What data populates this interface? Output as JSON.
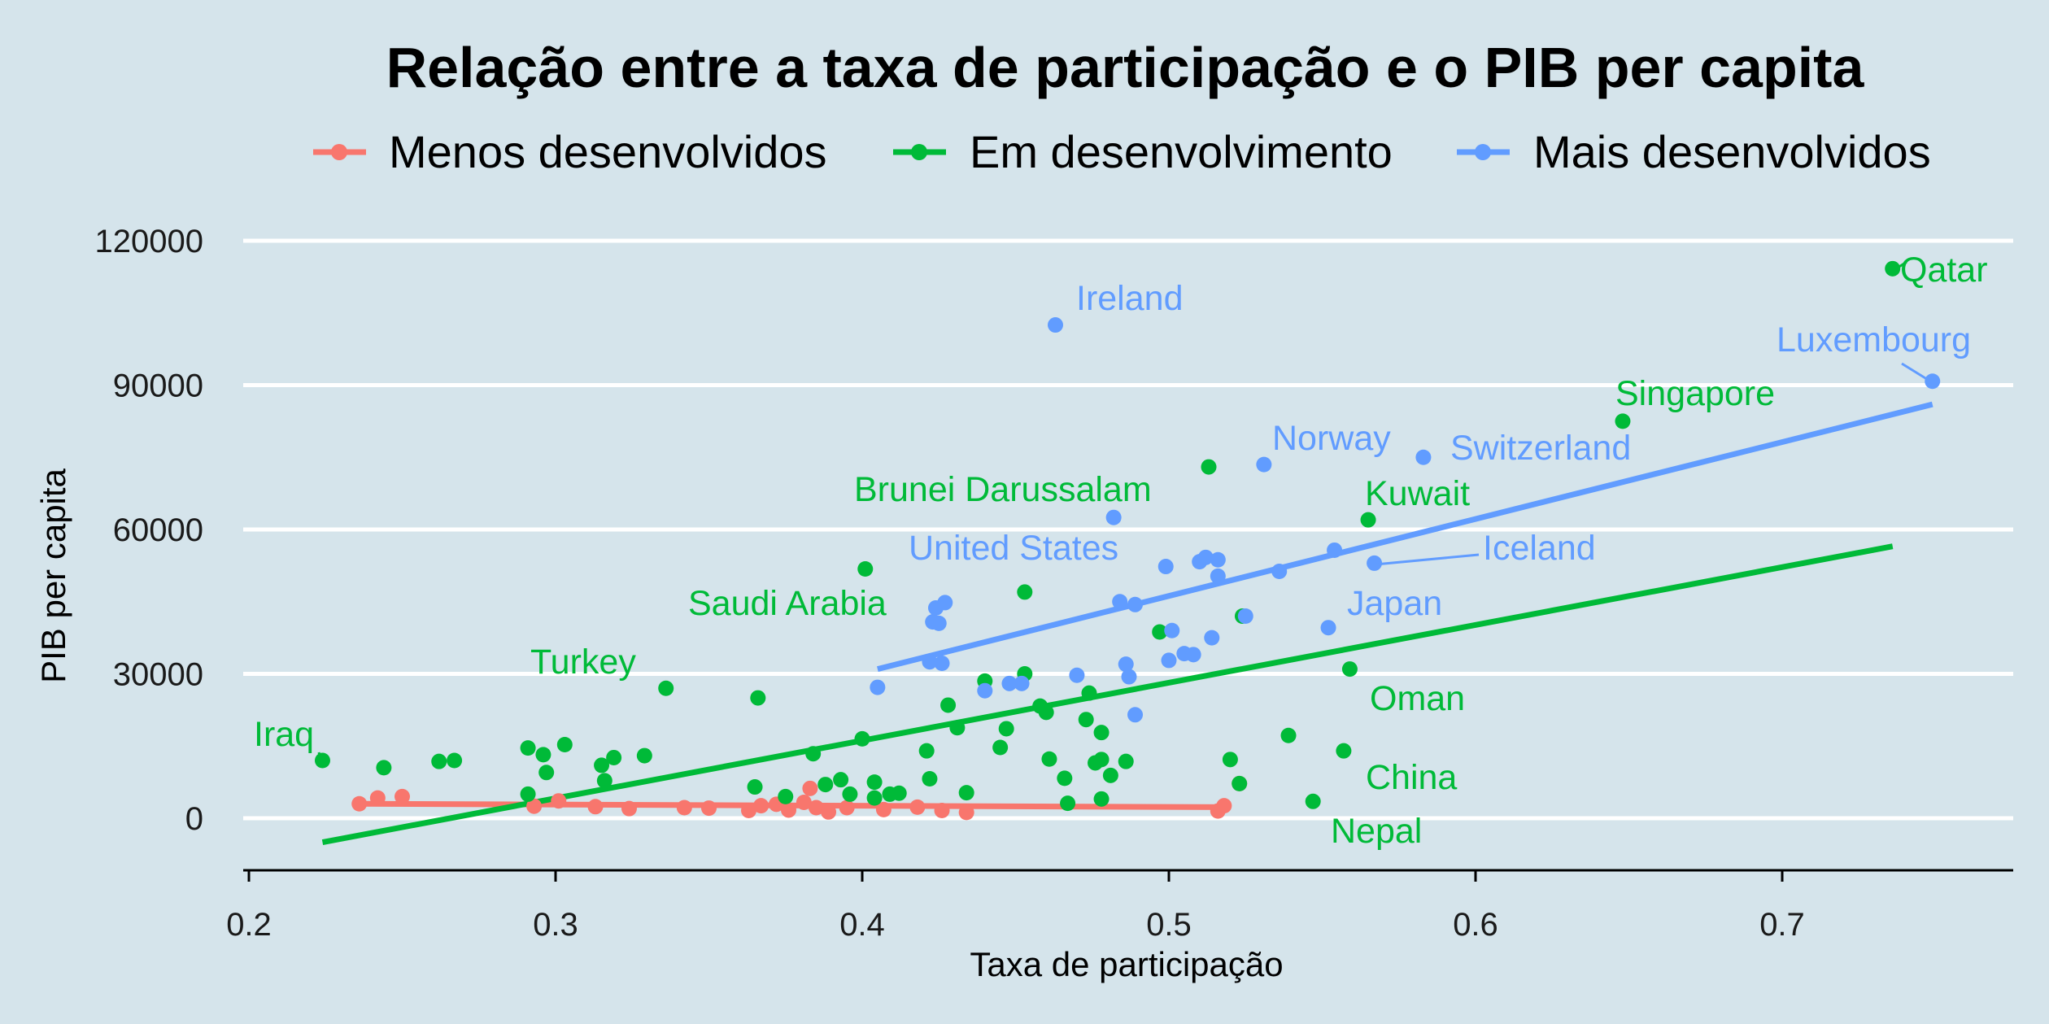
{
  "chart_data": {
    "type": "scatter",
    "title": "Relação entre a taxa de participação e o PIB per capita",
    "xlabel": "Taxa de participação",
    "ylabel": "PIB per capita",
    "xlim": [
      0.195,
      0.775
    ],
    "ylim": [
      -10000,
      125000
    ],
    "x_ticks": [
      0.2,
      0.3,
      0.4,
      0.5,
      0.6,
      0.7
    ],
    "x_tick_labels": [
      "0.2",
      "0.3",
      "0.4",
      "0.5",
      "0.6",
      "0.7"
    ],
    "y_ticks": [
      0,
      30000,
      60000,
      90000,
      120000
    ],
    "y_tick_labels": [
      "0",
      "30000",
      "60000",
      "90000",
      "120000"
    ],
    "grid": "horizontal",
    "legend_position": "top",
    "series": [
      {
        "name": "Menos desenvolvidos",
        "color": "#f8766d",
        "points": [
          [
            0.236,
            3000
          ],
          [
            0.242,
            4200
          ],
          [
            0.25,
            4500
          ],
          [
            0.293,
            2500
          ],
          [
            0.301,
            3600
          ],
          [
            0.313,
            2400
          ],
          [
            0.324,
            2000
          ],
          [
            0.342,
            2200
          ],
          [
            0.35,
            2100
          ],
          [
            0.363,
            1600
          ],
          [
            0.367,
            2600
          ],
          [
            0.372,
            2900
          ],
          [
            0.376,
            1700
          ],
          [
            0.381,
            3300
          ],
          [
            0.385,
            2200
          ],
          [
            0.383,
            6200
          ],
          [
            0.389,
            1300
          ],
          [
            0.395,
            2200
          ],
          [
            0.407,
            1800
          ],
          [
            0.418,
            2300
          ],
          [
            0.426,
            1600
          ],
          [
            0.434,
            1200
          ],
          [
            0.516,
            1500
          ],
          [
            0.518,
            2600
          ],
          [
            0.523,
            7200
          ]
        ],
        "trend": [
          [
            0.236,
            3000
          ],
          [
            0.518,
            2300
          ]
        ]
      },
      {
        "name": "Em desenvolvimento",
        "color": "#00ba38",
        "points": [
          [
            0.224,
            12000
          ],
          [
            0.244,
            10500
          ],
          [
            0.262,
            11800
          ],
          [
            0.267,
            12000
          ],
          [
            0.291,
            14600
          ],
          [
            0.296,
            13200
          ],
          [
            0.303,
            15300
          ],
          [
            0.315,
            11000
          ],
          [
            0.319,
            12600
          ],
          [
            0.329,
            13000
          ],
          [
            0.291,
            5000
          ],
          [
            0.297,
            9500
          ],
          [
            0.316,
            7800
          ],
          [
            0.336,
            27000
          ],
          [
            0.366,
            25000
          ],
          [
            0.365,
            6500
          ],
          [
            0.384,
            13400
          ],
          [
            0.375,
            4500
          ],
          [
            0.388,
            7000
          ],
          [
            0.393,
            8000
          ],
          [
            0.396,
            5000
          ],
          [
            0.4,
            16500
          ],
          [
            0.401,
            51800
          ],
          [
            0.404,
            7500
          ],
          [
            0.404,
            4200
          ],
          [
            0.409,
            5000
          ],
          [
            0.412,
            5200
          ],
          [
            0.421,
            14000
          ],
          [
            0.422,
            8200
          ],
          [
            0.428,
            23500
          ],
          [
            0.431,
            18800
          ],
          [
            0.434,
            5300
          ],
          [
            0.44,
            28500
          ],
          [
            0.445,
            14700
          ],
          [
            0.447,
            18600
          ],
          [
            0.453,
            47000
          ],
          [
            0.453,
            30000
          ],
          [
            0.458,
            23300
          ],
          [
            0.46,
            22000
          ],
          [
            0.461,
            12300
          ],
          [
            0.466,
            8300
          ],
          [
            0.467,
            3100
          ],
          [
            0.473,
            20500
          ],
          [
            0.474,
            26000
          ],
          [
            0.476,
            11500
          ],
          [
            0.478,
            12200
          ],
          [
            0.478,
            17800
          ],
          [
            0.478,
            4000
          ],
          [
            0.481,
            8900
          ],
          [
            0.486,
            11800
          ],
          [
            0.497,
            38700
          ],
          [
            0.513,
            73000
          ],
          [
            0.52,
            12200
          ],
          [
            0.523,
            7200
          ],
          [
            0.524,
            42000
          ],
          [
            0.539,
            17200
          ],
          [
            0.547,
            3500
          ],
          [
            0.557,
            14000
          ],
          [
            0.559,
            31000
          ],
          [
            0.565,
            62000
          ],
          [
            0.648,
            82500
          ],
          [
            0.736,
            114200
          ]
        ],
        "trend": [
          [
            0.224,
            -5000
          ],
          [
            0.736,
            56500
          ]
        ]
      },
      {
        "name": "Mais desenvolvidos",
        "color": "#619cff",
        "points": [
          [
            0.405,
            27200
          ],
          [
            0.422,
            32500
          ],
          [
            0.426,
            32200
          ],
          [
            0.423,
            40800
          ],
          [
            0.424,
            43700
          ],
          [
            0.425,
            40500
          ],
          [
            0.427,
            44800
          ],
          [
            0.44,
            26500
          ],
          [
            0.448,
            28000
          ],
          [
            0.452,
            28000
          ],
          [
            0.463,
            102500
          ],
          [
            0.47,
            29700
          ],
          [
            0.482,
            62500
          ],
          [
            0.484,
            45000
          ],
          [
            0.486,
            32000
          ],
          [
            0.487,
            29400
          ],
          [
            0.489,
            44400
          ],
          [
            0.489,
            21500
          ],
          [
            0.499,
            52300
          ],
          [
            0.5,
            32800
          ],
          [
            0.501,
            39000
          ],
          [
            0.505,
            34200
          ],
          [
            0.508,
            34000
          ],
          [
            0.51,
            53300
          ],
          [
            0.512,
            54200
          ],
          [
            0.514,
            37500
          ],
          [
            0.516,
            53700
          ],
          [
            0.516,
            50300
          ],
          [
            0.525,
            42000
          ],
          [
            0.531,
            73500
          ],
          [
            0.536,
            51300
          ],
          [
            0.552,
            39600
          ],
          [
            0.554,
            55700
          ],
          [
            0.567,
            53000
          ],
          [
            0.583,
            75000
          ],
          [
            0.749,
            90800
          ]
        ],
        "trend": [
          [
            0.405,
            31000
          ],
          [
            0.749,
            86000
          ]
        ]
      }
    ],
    "annotations": [
      {
        "text": "Qatar",
        "series": "Em desenvolvimento"
      },
      {
        "text": "Luxembourg",
        "series": "Mais desenvolvidos"
      },
      {
        "text": "Singapore",
        "series": "Em desenvolvimento"
      },
      {
        "text": "Ireland",
        "series": "Mais desenvolvidos"
      },
      {
        "text": "Norway",
        "series": "Mais desenvolvidos"
      },
      {
        "text": "Switzerland",
        "series": "Mais desenvolvidos"
      },
      {
        "text": "Kuwait",
        "series": "Em desenvolvimento"
      },
      {
        "text": "Brunei Darussalam",
        "series": "Em desenvolvimento"
      },
      {
        "text": "United States",
        "series": "Mais desenvolvidos"
      },
      {
        "text": "Iceland",
        "series": "Mais desenvolvidos"
      },
      {
        "text": "Saudi Arabia",
        "series": "Em desenvolvimento"
      },
      {
        "text": "Japan",
        "series": "Mais desenvolvidos"
      },
      {
        "text": "Turkey",
        "series": "Em desenvolvimento"
      },
      {
        "text": "Oman",
        "series": "Em desenvolvimento"
      },
      {
        "text": "Iraq",
        "series": "Em desenvolvimento"
      },
      {
        "text": "China",
        "series": "Em desenvolvimento"
      },
      {
        "text": "Nepal",
        "series": "Em desenvolvimento"
      }
    ]
  }
}
